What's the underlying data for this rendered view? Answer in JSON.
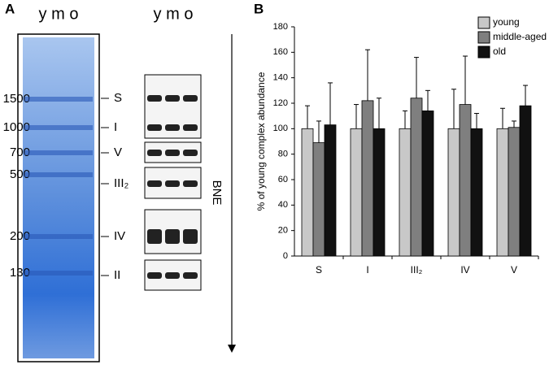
{
  "panel_a": {
    "label": "A",
    "gel_lanes": "y m o",
    "blot_lanes": "y m o",
    "markers": [
      "1500",
      "1000",
      "700",
      "500",
      "200",
      "130"
    ],
    "complexes": [
      "S",
      "I",
      "V",
      "III₂",
      "IV",
      "II"
    ],
    "arrow_label": "BNE"
  },
  "chart_data": {
    "type": "bar",
    "panel_label": "B",
    "y_label": "% of young complex abundance",
    "categories": [
      "S",
      "I",
      "III₂",
      "IV",
      "V"
    ],
    "series": [
      {
        "name": "young",
        "color": "#c8c8c8",
        "values": [
          100,
          100,
          100,
          100,
          100
        ],
        "errors": [
          18,
          19,
          14,
          31,
          16
        ]
      },
      {
        "name": "middle-aged",
        "color": "#7f7f7f",
        "values": [
          89,
          122,
          124,
          119,
          101
        ],
        "errors": [
          17,
          40,
          32,
          38,
          5
        ]
      },
      {
        "name": "old",
        "color": "#111111",
        "values": [
          103,
          100,
          114,
          100,
          118
        ],
        "errors": [
          33,
          24,
          16,
          12,
          16
        ]
      }
    ],
    "ylim": [
      0,
      180
    ],
    "yticks": [
      0,
      20,
      40,
      60,
      80,
      100,
      120,
      140,
      160,
      180
    ],
    "legend": "top-right",
    "error_bars": "upper"
  }
}
